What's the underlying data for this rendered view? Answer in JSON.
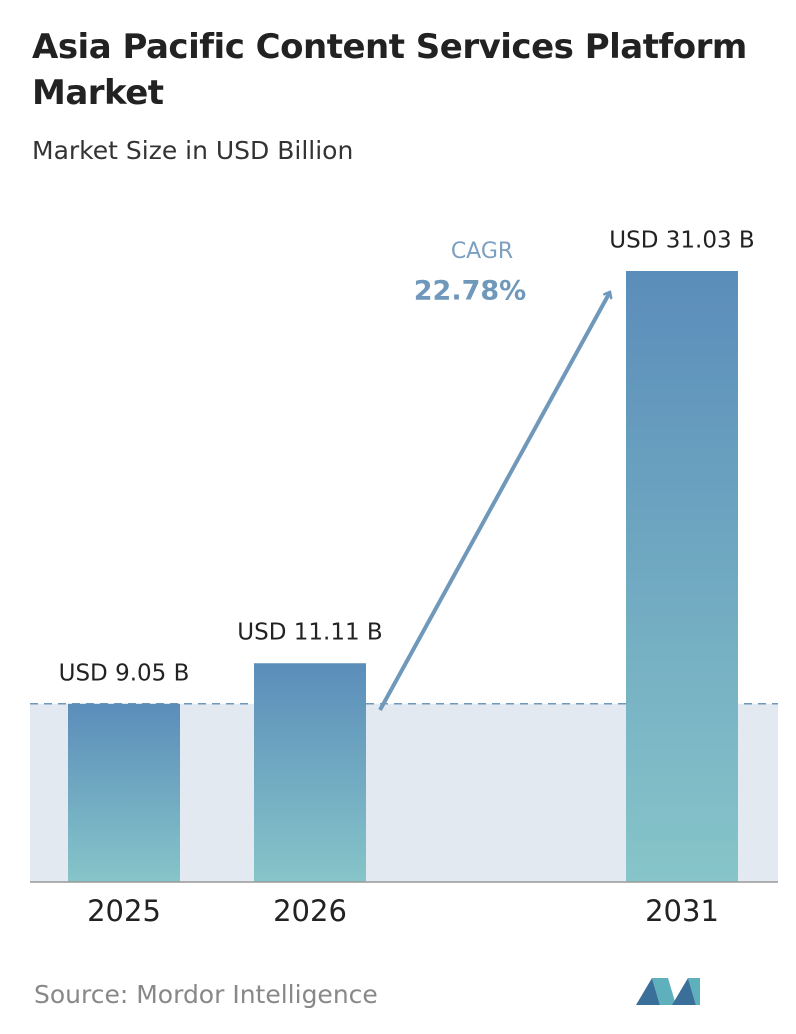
{
  "chart_data": {
    "type": "bar",
    "title": "Asia Pacific Content Services Platform Market",
    "subtitle": "Market Size in USD Billion",
    "categories": [
      "2025",
      "2026",
      "2031"
    ],
    "values": [
      9.05,
      11.11,
      31.03
    ],
    "value_labels": [
      "USD 9.05 B",
      "USD 11.11 B",
      "USD 31.03 B"
    ],
    "color": "#5b8dba",
    "annotation": {
      "label": "CAGR",
      "value": "22.78%"
    },
    "source": "Source:  Mordor Intelligence"
  }
}
